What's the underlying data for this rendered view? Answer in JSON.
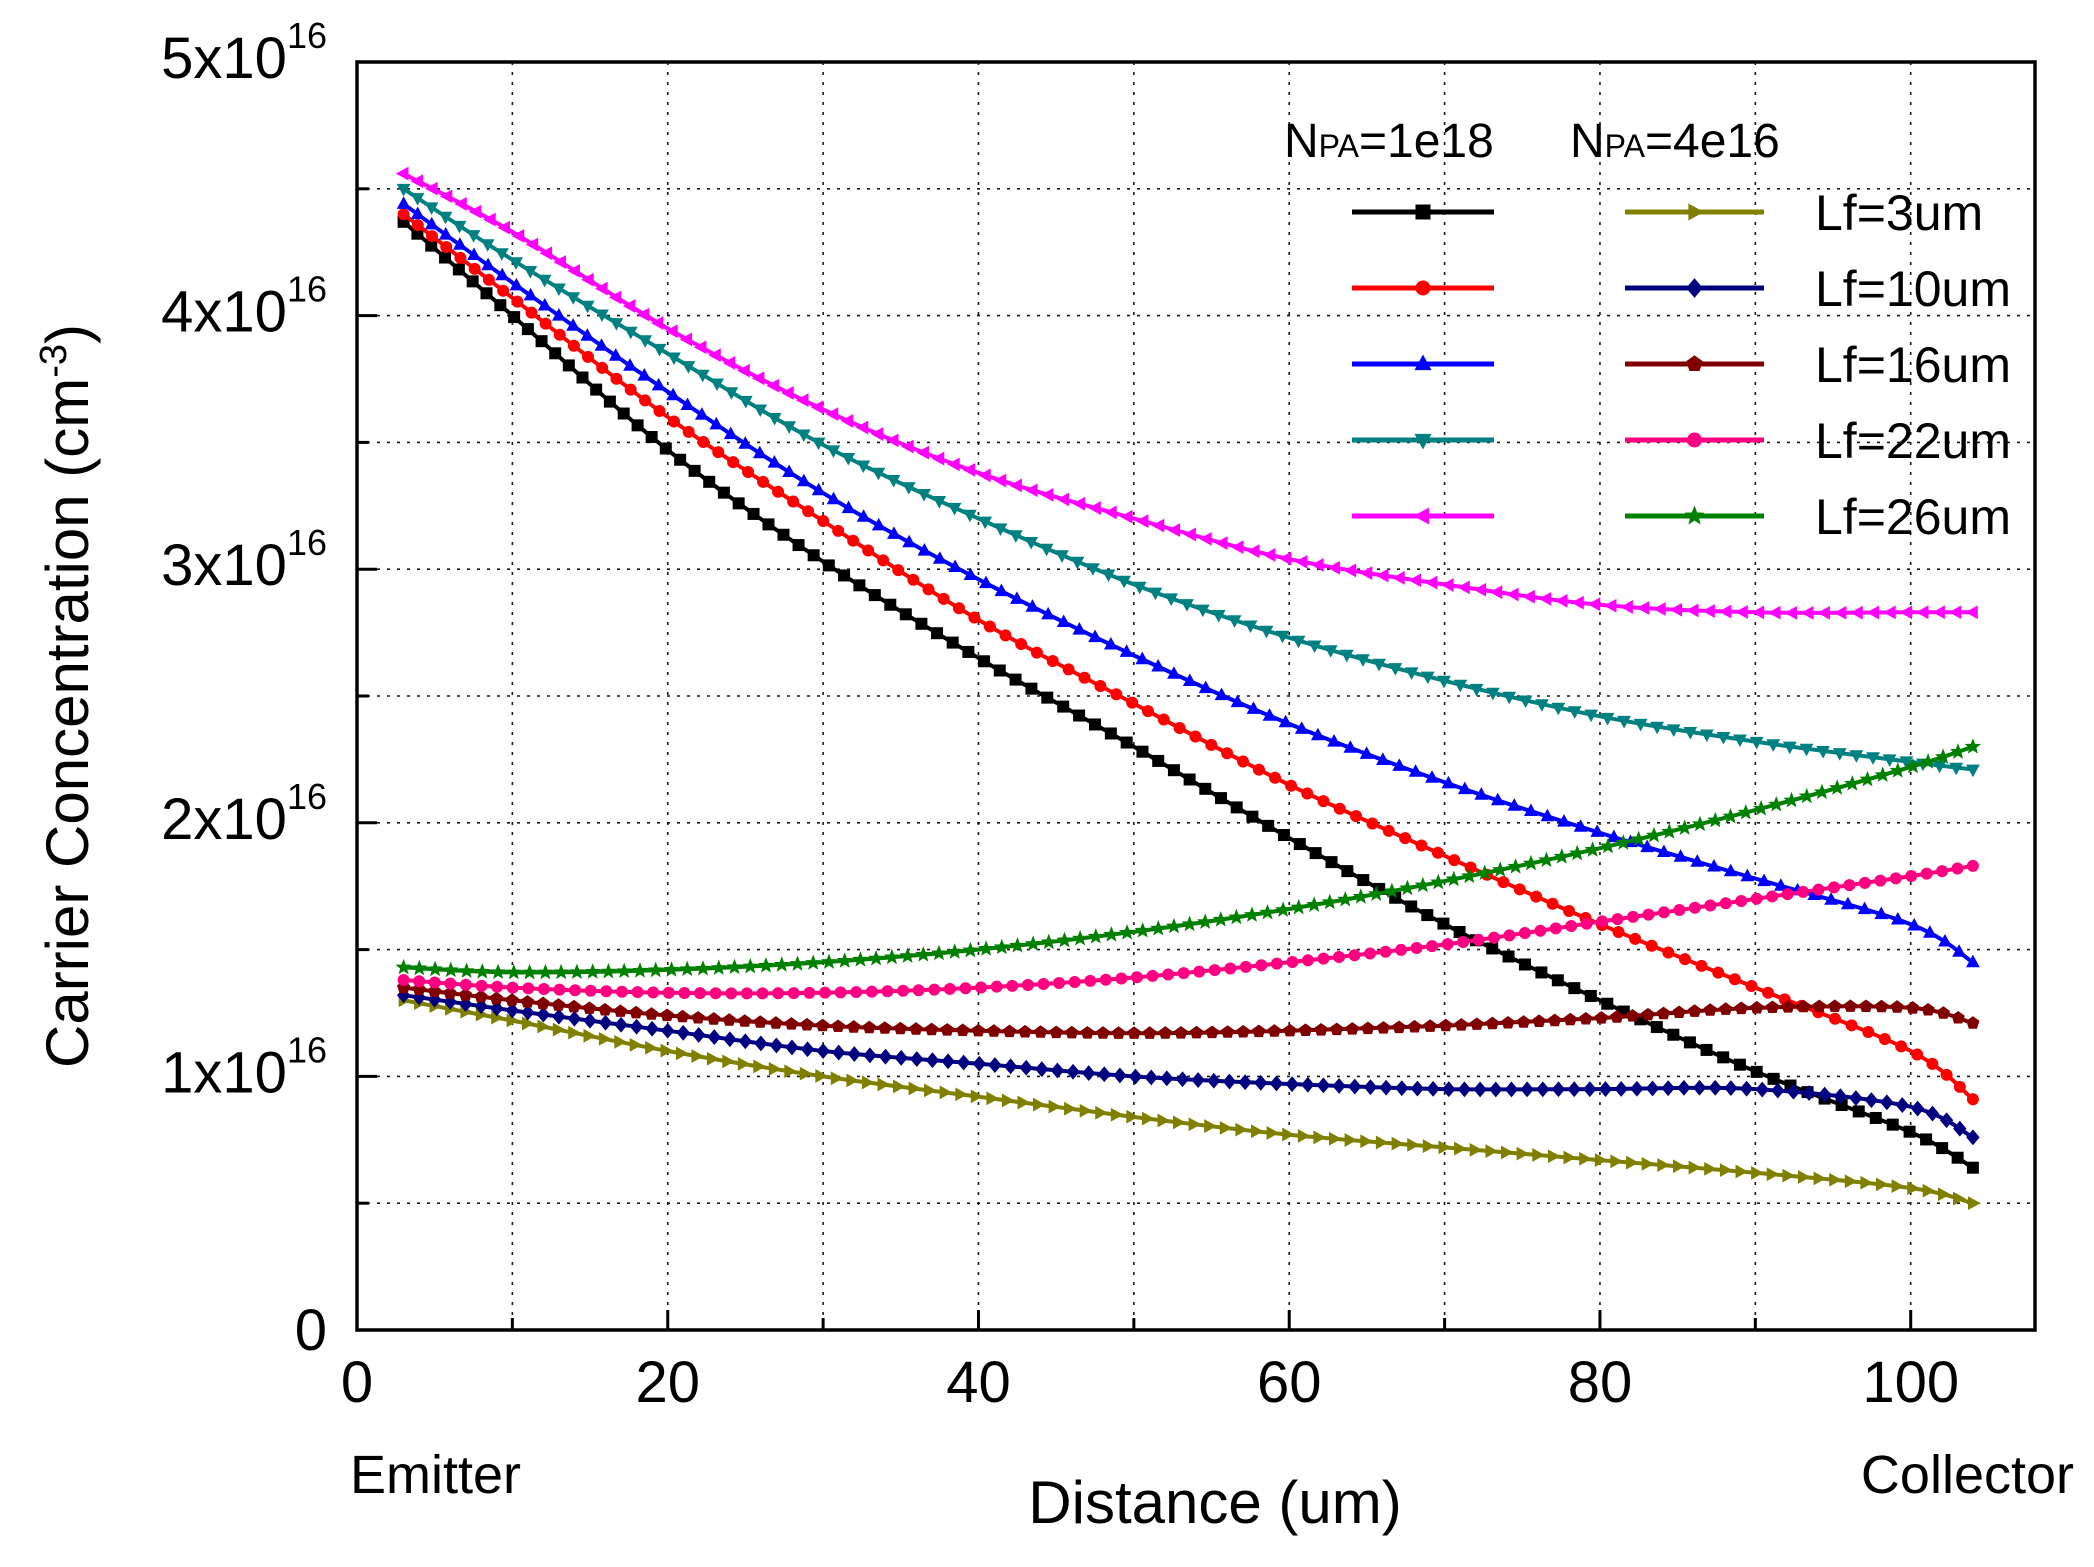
{
  "chart_data": {
    "type": "line",
    "x_title": "Distance (um)",
    "y_title": "Carrier Concentration (cm",
    "y_title_sup": "-3",
    "y_title_close": ")",
    "x_left_label": "Emitter",
    "x_right_label": "Collector",
    "xlim": [
      0,
      108
    ],
    "ylim": [
      0,
      5e+16
    ],
    "x_ticks": [
      {
        "value": 0,
        "label": "0"
      },
      {
        "value": 20,
        "label": "20"
      },
      {
        "value": 40,
        "label": "40"
      },
      {
        "value": 60,
        "label": "60"
      },
      {
        "value": 80,
        "label": "80"
      },
      {
        "value": 100,
        "label": "100"
      }
    ],
    "y_ticks": [
      {
        "value": 0,
        "label": "0",
        "sup": ""
      },
      {
        "value": 1e+16,
        "label": "1x10",
        "sup": "16"
      },
      {
        "value": 2e+16,
        "label": "2x10",
        "sup": "16"
      },
      {
        "value": 3e+16,
        "label": "3x10",
        "sup": "16"
      },
      {
        "value": 4e+16,
        "label": "4x10",
        "sup": "16"
      },
      {
        "value": 5e+16,
        "label": "5x10",
        "sup": "16"
      }
    ],
    "grid": true,
    "legend": {
      "placement": "top-right",
      "column_headers": [
        {
          "main": "N",
          "sub": "PA",
          "rest": "=1e18"
        },
        {
          "main": "N",
          "sub": "PA",
          "rest": "=4e16"
        }
      ],
      "rows": [
        "Lf=3um",
        "Lf=10um",
        "Lf=16um",
        "Lf=22um",
        "Lf=26um"
      ]
    },
    "series": [
      {
        "name": "NPA=1e18, Lf=3um",
        "color": "#000000",
        "marker": "square",
        "x": [
          3,
          10,
          20,
          30,
          40,
          50,
          60,
          70,
          80,
          90,
          100,
          104
        ],
        "y": [
          4.37e+16,
          4e+16,
          3.47e+16,
          3.03e+16,
          2.65e+16,
          2.3e+16,
          1.94e+16,
          1.6e+16,
          1.3e+16,
          1.02e+16,
          7800000000000000.0,
          6400000000000000.0
        ]
      },
      {
        "name": "NPA=1e18, Lf=10um",
        "color": "#ff0000",
        "marker": "circle",
        "x": [
          3,
          10,
          20,
          30,
          40,
          50,
          60,
          70,
          80,
          90,
          100,
          104
        ],
        "y": [
          4.4e+16,
          4.07e+16,
          3.6e+16,
          3.19e+16,
          2.8e+16,
          2.47e+16,
          2.15e+16,
          1.87e+16,
          1.6e+16,
          1.35e+16,
          1.1e+16,
          9100000000000000.0
        ]
      },
      {
        "name": "NPA=1e18, Lf=16um",
        "color": "#0000ff",
        "marker": "triangle-up",
        "x": [
          3,
          10,
          20,
          30,
          40,
          50,
          60,
          70,
          80,
          90,
          100,
          104
        ],
        "y": [
          4.44e+16,
          4.13e+16,
          3.7e+16,
          3.3e+16,
          2.96e+16,
          2.66e+16,
          2.39e+16,
          2.16e+16,
          1.96e+16,
          1.78e+16,
          1.6e+16,
          1.45e+16
        ]
      },
      {
        "name": "NPA=1e18, Lf=22um",
        "color": "#008080",
        "marker": "triangle-down",
        "x": [
          3,
          10,
          20,
          30,
          40,
          50,
          60,
          70,
          80,
          90,
          100,
          104
        ],
        "y": [
          4.5e+16,
          4.22e+16,
          3.85e+16,
          3.49e+16,
          3.2e+16,
          2.94e+16,
          2.73e+16,
          2.56e+16,
          2.42e+16,
          2.32e+16,
          2.24e+16,
          2.21e+16
        ]
      },
      {
        "name": "NPA=1e18, Lf=26um",
        "color": "#ff00ff",
        "marker": "triangle-left",
        "x": [
          3,
          10,
          20,
          30,
          40,
          50,
          60,
          70,
          80,
          90,
          100,
          104
        ],
        "y": [
          4.56e+16,
          4.33e+16,
          3.95e+16,
          3.63e+16,
          3.38e+16,
          3.2e+16,
          3.04e+16,
          2.94e+16,
          2.86e+16,
          2.83e+16,
          2.83e+16,
          2.83e+16
        ]
      },
      {
        "name": "NPA=4e16, Lf=3um",
        "color": "#808000",
        "marker": "triangle-right",
        "x": [
          3,
          10,
          20,
          30,
          40,
          50,
          60,
          70,
          80,
          90,
          100,
          104
        ],
        "y": [
          1.3e+16,
          1.22e+16,
          1.1e+16,
          1e+16,
          9200000000000000.0,
          8400000000000000.0,
          7700000000000000.0,
          7200000000000000.0,
          6700000000000000.0,
          6200000000000000.0,
          5600000000000000.0,
          5000000000000000.0
        ]
      },
      {
        "name": "NPA=4e16, Lf=10um",
        "color": "#000080",
        "marker": "diamond",
        "x": [
          3,
          10,
          20,
          30,
          40,
          50,
          60,
          70,
          80,
          90,
          100,
          104
        ],
        "y": [
          1.32e+16,
          1.26e+16,
          1.18e+16,
          1.1e+16,
          1.05e+16,
          1e+16,
          9700000000000000.0,
          9500000000000000.0,
          9500000000000000.0,
          9500000000000000.0,
          8800000000000000.0,
          7600000000000000.0
        ]
      },
      {
        "name": "NPA=4e16, Lf=16um",
        "color": "#800000",
        "marker": "pentagon",
        "x": [
          3,
          10,
          20,
          30,
          40,
          50,
          60,
          70,
          80,
          90,
          100,
          104
        ],
        "y": [
          1.35e+16,
          1.3e+16,
          1.24e+16,
          1.2e+16,
          1.18e+16,
          1.17e+16,
          1.18e+16,
          1.2e+16,
          1.23e+16,
          1.27e+16,
          1.27e+16,
          1.21e+16
        ]
      },
      {
        "name": "NPA=4e16, Lf=22um",
        "color": "#ff0080",
        "marker": "circle",
        "x": [
          3,
          10,
          20,
          30,
          40,
          50,
          60,
          70,
          80,
          90,
          100,
          104
        ],
        "y": [
          1.38e+16,
          1.35e+16,
          1.33e+16,
          1.33e+16,
          1.35e+16,
          1.39e+16,
          1.45e+16,
          1.52e+16,
          1.61e+16,
          1.7e+16,
          1.79e+16,
          1.83e+16
        ]
      },
      {
        "name": "NPA=4e16, Lf=26um",
        "color": "#008000",
        "marker": "star",
        "x": [
          3,
          10,
          20,
          30,
          40,
          50,
          60,
          70,
          80,
          90,
          100,
          104
        ],
        "y": [
          1.43e+16,
          1.41e+16,
          1.42e+16,
          1.45e+16,
          1.5e+16,
          1.57e+16,
          1.66e+16,
          1.77e+16,
          1.9e+16,
          2.05e+16,
          2.22e+16,
          2.3e+16
        ]
      }
    ]
  }
}
